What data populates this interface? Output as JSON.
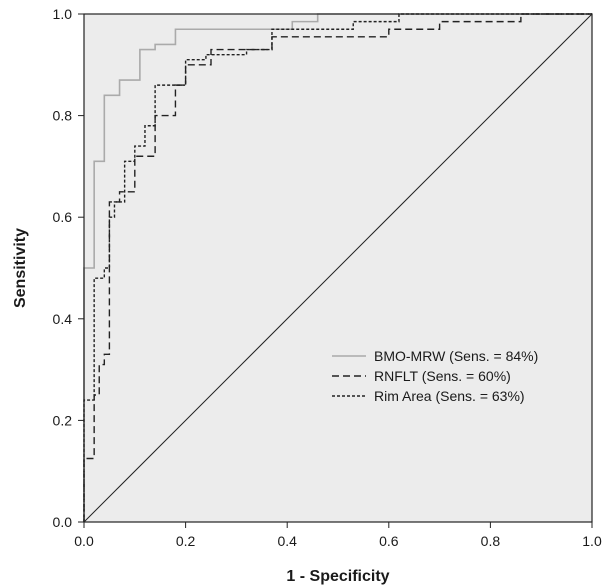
{
  "chart_data": {
    "type": "line",
    "title": "",
    "xlabel": "1 - Specificity",
    "ylabel": "Sensitivity",
    "xlim": [
      0,
      1
    ],
    "ylim": [
      0,
      1
    ],
    "xticks": [
      0.0,
      0.2,
      0.4,
      0.6,
      0.8,
      1.0
    ],
    "yticks": [
      0.0,
      0.2,
      0.4,
      0.6,
      0.8,
      1.0
    ],
    "xtick_labels": [
      "0.0",
      "0.2",
      "0.4",
      "0.6",
      "0.8",
      "1.0"
    ],
    "ytick_labels": [
      "0.0",
      "0.2",
      "0.4",
      "0.6",
      "0.8",
      "1.0"
    ],
    "grid": false,
    "plot_background": "#ececec",
    "legend_position": "lower-right",
    "diagonal_reference": true,
    "series": [
      {
        "name": "BMO-MRW (Sens. = 84%)",
        "style": "solid",
        "color": "#aaaaaa",
        "x": [
          0,
          0,
          0.02,
          0.02,
          0.04,
          0.04,
          0.07,
          0.07,
          0.11,
          0.11,
          0.14,
          0.14,
          0.18,
          0.18,
          0.41,
          0.41,
          0.46,
          0.46,
          1.0
        ],
        "y": [
          0,
          0.5,
          0.5,
          0.71,
          0.71,
          0.84,
          0.84,
          0.87,
          0.87,
          0.93,
          0.93,
          0.94,
          0.94,
          0.97,
          0.97,
          0.985,
          0.985,
          1.0,
          1.0
        ]
      },
      {
        "name": "RNFLT (Sens. = 60%)",
        "style": "dashed",
        "color": "#222222",
        "x": [
          0,
          0,
          0.02,
          0.02,
          0.03,
          0.03,
          0.04,
          0.04,
          0.05,
          0.05,
          0.07,
          0.07,
          0.1,
          0.1,
          0.14,
          0.14,
          0.18,
          0.18,
          0.2,
          0.2,
          0.25,
          0.25,
          0.37,
          0.37,
          0.6,
          0.6,
          0.7,
          0.7,
          0.86,
          0.86,
          1.0
        ],
        "y": [
          0,
          0.125,
          0.125,
          0.25,
          0.25,
          0.31,
          0.31,
          0.33,
          0.33,
          0.63,
          0.63,
          0.65,
          0.65,
          0.72,
          0.72,
          0.8,
          0.8,
          0.86,
          0.86,
          0.9,
          0.9,
          0.93,
          0.93,
          0.955,
          0.955,
          0.97,
          0.97,
          0.985,
          0.985,
          1.0,
          1.0
        ]
      },
      {
        "name": "Rim Area (Sens. = 63%)",
        "style": "dotted",
        "color": "#222222",
        "x": [
          0,
          0,
          0.02,
          0.02,
          0.04,
          0.04,
          0.05,
          0.05,
          0.06,
          0.06,
          0.08,
          0.08,
          0.1,
          0.1,
          0.12,
          0.12,
          0.14,
          0.14,
          0.2,
          0.2,
          0.24,
          0.24,
          0.32,
          0.32,
          0.37,
          0.37,
          0.53,
          0.53,
          0.62,
          0.62,
          1.0
        ],
        "y": [
          0,
          0.24,
          0.24,
          0.48,
          0.48,
          0.5,
          0.5,
          0.6,
          0.6,
          0.63,
          0.63,
          0.71,
          0.71,
          0.74,
          0.74,
          0.78,
          0.78,
          0.86,
          0.86,
          0.91,
          0.91,
          0.92,
          0.92,
          0.93,
          0.93,
          0.97,
          0.97,
          0.985,
          0.985,
          1.0,
          1.0
        ]
      }
    ]
  }
}
